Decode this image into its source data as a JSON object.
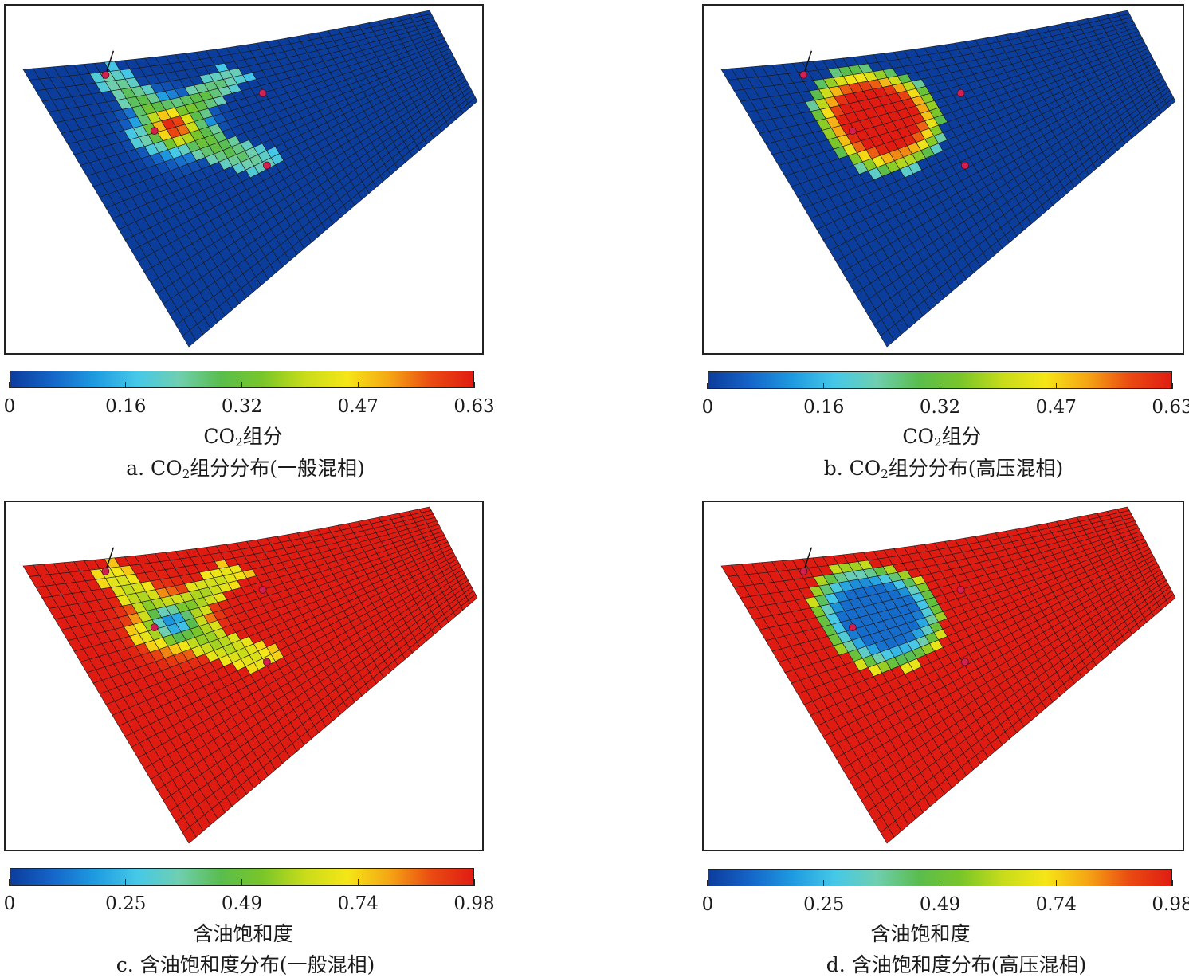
{
  "colormap": [
    "#0b3d9c",
    "#1565c8",
    "#1e9be0",
    "#45c8e8",
    "#6fcfb0",
    "#59bd4d",
    "#7ac629",
    "#c8dc1a",
    "#f5e617",
    "#f5a614",
    "#ea4b12",
    "#e01c12"
  ],
  "grid_color": "#1a1a1a",
  "well_color": "#d4204e",
  "chart_data": [
    {
      "type": "heatmap",
      "id": "a",
      "caption_prefix": "a. CO",
      "caption_sub": "2",
      "caption_suffix": "组分分布(一般混相)",
      "colorbar_label_prefix": "CO",
      "colorbar_label_sub": "2",
      "colorbar_label_suffix": "组分",
      "colorbar_ticks": [
        "0",
        "0.16",
        "0.32",
        "0.47",
        "0.63"
      ],
      "range": [
        0,
        0.63
      ],
      "background_value": 0.0,
      "plume_shape": "cross",
      "plume_peak": 0.63
    },
    {
      "type": "heatmap",
      "id": "b",
      "caption_prefix": "b. CO",
      "caption_sub": "2",
      "caption_suffix": "组分分布(高压混相)",
      "colorbar_label_prefix": "CO",
      "colorbar_label_sub": "2",
      "colorbar_label_suffix": "组分",
      "colorbar_ticks": [
        "0",
        "0.16",
        "0.32",
        "0.47",
        "0.63"
      ],
      "range": [
        0,
        0.63
      ],
      "background_value": 0.0,
      "plume_shape": "ellipse",
      "plume_peak": 0.63
    },
    {
      "type": "heatmap",
      "id": "c",
      "caption_prefix": "c. 含油饱和度分布(一般混相)",
      "caption_sub": "",
      "caption_suffix": "",
      "colorbar_label_prefix": "含油饱和度",
      "colorbar_label_sub": "",
      "colorbar_label_suffix": "",
      "colorbar_ticks": [
        "0",
        "0.25",
        "0.49",
        "0.74",
        "0.98"
      ],
      "range": [
        0,
        0.98
      ],
      "background_value": 0.98,
      "plume_shape": "cross",
      "plume_peak": 0.15
    },
    {
      "type": "heatmap",
      "id": "d",
      "caption_prefix": "d. 含油饱和度分布(高压混相)",
      "caption_sub": "",
      "caption_suffix": "",
      "colorbar_label_prefix": "含油饱和度",
      "colorbar_label_sub": "",
      "colorbar_label_suffix": "",
      "colorbar_ticks": [
        "0",
        "0.25",
        "0.49",
        "0.74",
        "0.98"
      ],
      "range": [
        0,
        0.98
      ],
      "background_value": 0.98,
      "plume_shape": "ellipse",
      "plume_peak": 0.1
    }
  ]
}
